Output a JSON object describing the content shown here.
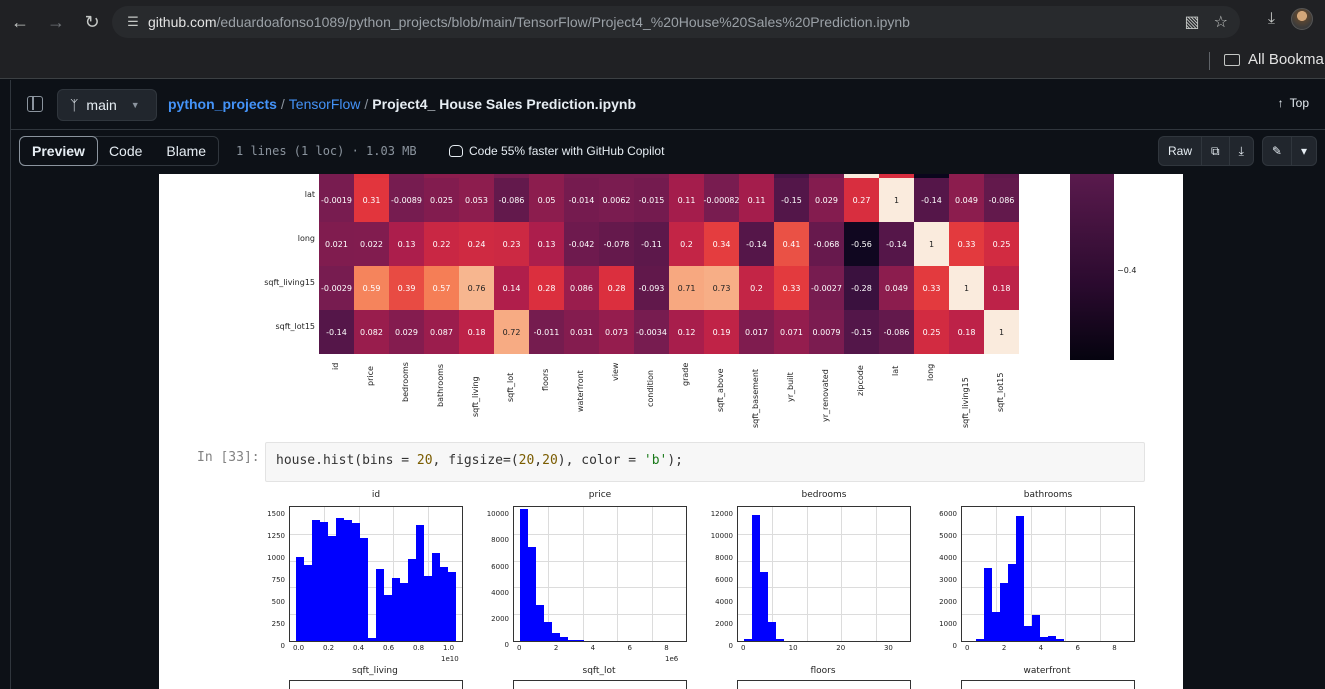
{
  "browser": {
    "url_host": "github.com",
    "url_path": "/eduardoafonso1089/python_projects/blob/main/TensorFlow/Project4_%20House%20Sales%20Prediction.ipynb",
    "bookmarks_label": "All Bookma"
  },
  "repo": {
    "branch": "main",
    "repo_name": "python_projects",
    "dir_name": "TensorFlow",
    "file_name": "Project4_ House Sales Prediction.ipynb",
    "top_label": "Top"
  },
  "file_toolbar": {
    "tabs": [
      "Preview",
      "Code",
      "Blame"
    ],
    "active_tab": "Preview",
    "file_info": "1 lines (1 loc) · 1.03 MB",
    "copilot_text": "Code 55% faster with GitHub Copilot",
    "raw_label": "Raw"
  },
  "heatmap": {
    "columns": [
      "id",
      "price",
      "bedrooms",
      "bathrooms",
      "sqft_living",
      "sqft_lot",
      "floors",
      "waterfront",
      "view",
      "condition",
      "grade",
      "sqft_above",
      "sqft_basement",
      "yr_built",
      "yr_renovated",
      "zipcode",
      "lat",
      "long",
      "sqft_living15",
      "sqft_lot15"
    ],
    "rows": [
      {
        "label": "lat",
        "values": [
          "-0.0019",
          "0.31",
          "-0.0089",
          "0.025",
          "0.053",
          "-0.086",
          "0.05",
          "-0.014",
          "0.0062",
          "-0.015",
          "0.11",
          "-0.00082",
          "0.11",
          "-0.15",
          "0.029",
          "0.27",
          "1",
          "-0.14",
          "0.049",
          "-0.086"
        ]
      },
      {
        "label": "long",
        "values": [
          "0.021",
          "0.022",
          "0.13",
          "0.22",
          "0.24",
          "0.23",
          "0.13",
          "-0.042",
          "-0.078",
          "-0.11",
          "0.2",
          "0.34",
          "-0.14",
          "0.41",
          "-0.068",
          "-0.56",
          "-0.14",
          "1",
          "0.33",
          "0.25"
        ]
      },
      {
        "label": "sqft_living15",
        "values": [
          "-0.0029",
          "0.59",
          "0.39",
          "0.57",
          "0.76",
          "0.14",
          "0.28",
          "0.086",
          "0.28",
          "-0.093",
          "0.71",
          "0.73",
          "0.2",
          "0.33",
          "-0.0027",
          "-0.28",
          "0.049",
          "0.33",
          "1",
          "0.18"
        ]
      },
      {
        "label": "sqft_lot15",
        "values": [
          "-0.14",
          "0.082",
          "0.029",
          "0.087",
          "0.18",
          "0.72",
          "-0.011",
          "0.031",
          "0.073",
          "-0.0034",
          "0.12",
          "0.19",
          "0.017",
          "0.071",
          "0.0079",
          "-0.15",
          "-0.086",
          "0.25",
          "0.18",
          "1"
        ]
      }
    ],
    "colorbar_tick": "−0.4"
  },
  "cell": {
    "prompt": "In [33]:",
    "code_parts": [
      "house.hist(bins = ",
      "20",
      ", figsize=(",
      "20",
      ",",
      "20",
      "), color = ",
      "'b'",
      ");"
    ]
  },
  "histograms": [
    {
      "title": "id",
      "yticks": [
        "1500",
        "1250",
        "1000",
        "750",
        "500",
        "250",
        "0"
      ],
      "xticks": [
        "0.0",
        "0.2",
        "0.4",
        "0.6",
        "0.8",
        "1.0"
      ],
      "offset": "1e10",
      "bars": [
        1060,
        970,
        1540,
        1510,
        1330,
        1560,
        1540,
        1500,
        1310,
        40,
        910,
        590,
        800,
        730,
        1040,
        1470,
        830,
        1120,
        940,
        880
      ],
      "ymax": 1700
    },
    {
      "title": "price",
      "yticks": [
        "10000",
        "8000",
        "6000",
        "4000",
        "2000",
        "0"
      ],
      "xticks": [
        "0",
        "2",
        "4",
        "6",
        "8"
      ],
      "offset": "1e6",
      "bars": [
        11200,
        8000,
        3100,
        1600,
        700,
        300,
        120,
        60,
        40,
        20,
        10,
        5,
        5,
        3,
        2,
        2,
        1,
        1,
        1,
        1
      ],
      "ymax": 11400
    },
    {
      "title": "bedrooms",
      "yticks": [
        "12000",
        "10000",
        "8000",
        "6000",
        "4000",
        "2000",
        "0"
      ],
      "xticks": [
        "0",
        "10",
        "20",
        "30"
      ],
      "offset": "",
      "bars": [
        200,
        12600,
        6900,
        1900,
        200,
        30,
        5,
        3,
        1,
        1,
        1,
        1,
        0,
        0,
        0,
        0,
        0,
        0,
        0,
        1
      ],
      "ymax": 13400
    },
    {
      "title": "bathrooms",
      "yticks": [
        "6000",
        "5000",
        "4000",
        "3000",
        "2000",
        "1000",
        "0"
      ],
      "xticks": [
        "0",
        "2",
        "4",
        "6",
        "8"
      ],
      "offset": "",
      "bars": [
        10,
        100,
        3800,
        1500,
        3050,
        4000,
        6550,
        800,
        1350,
        200,
        250,
        100,
        20,
        10,
        5,
        3,
        2,
        1,
        1,
        1
      ],
      "ymax": 7000
    },
    {
      "title": "sqft_living"
    },
    {
      "title": "sqft_lot"
    },
    {
      "title": "floors"
    },
    {
      "title": "waterfront"
    }
  ]
}
